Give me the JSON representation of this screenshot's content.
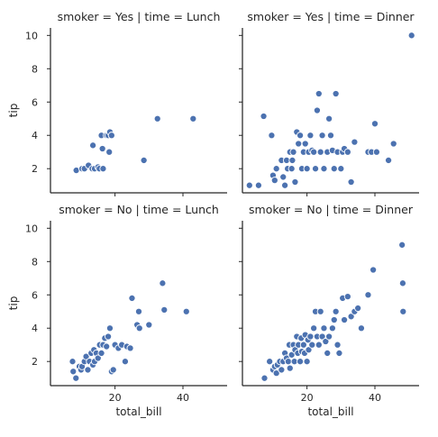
{
  "chart_data": {
    "type": "scatter",
    "facet_row_variable": "smoker",
    "facet_col_variable": "time",
    "xlabel": "total_bill",
    "ylabel": "tip",
    "xlim": [
      1,
      53
    ],
    "ylim": [
      0.55,
      10.45
    ],
    "x_ticks": [
      20,
      40
    ],
    "y_ticks": [
      2,
      4,
      6,
      8,
      10
    ],
    "point_color": "#4c72b0",
    "grid": false,
    "panels": [
      {
        "title": "smoker = Yes | time = Lunch",
        "points": [
          [
            8.6,
            1.9
          ],
          [
            10.3,
            2.0
          ],
          [
            11.0,
            2.0
          ],
          [
            12.2,
            2.2
          ],
          [
            13.3,
            2.0
          ],
          [
            13.5,
            3.4
          ],
          [
            14.0,
            2.0
          ],
          [
            15.0,
            2.1
          ],
          [
            15.4,
            2.0
          ],
          [
            16.0,
            4.0
          ],
          [
            16.3,
            3.2
          ],
          [
            16.5,
            2.0
          ],
          [
            17.5,
            4.0
          ],
          [
            18.0,
            4.0
          ],
          [
            18.3,
            3.0
          ],
          [
            18.5,
            4.2
          ],
          [
            19.0,
            4.0
          ],
          [
            28.5,
            2.5
          ],
          [
            32.5,
            5.0
          ],
          [
            43.0,
            5.0
          ]
        ]
      },
      {
        "title": "smoker = Yes | time = Dinner",
        "points": [
          [
            3.07,
            1.0
          ],
          [
            5.75,
            1.0
          ],
          [
            7.25,
            5.15
          ],
          [
            9.6,
            4.0
          ],
          [
            10.0,
            1.6
          ],
          [
            10.5,
            1.3
          ],
          [
            11.0,
            2.0
          ],
          [
            12.5,
            2.5
          ],
          [
            13.0,
            1.5
          ],
          [
            13.5,
            1.0
          ],
          [
            14.0,
            2.5
          ],
          [
            14.3,
            2.0
          ],
          [
            15.0,
            3.0
          ],
          [
            15.5,
            2.0
          ],
          [
            15.7,
            2.5
          ],
          [
            16.0,
            3.0
          ],
          [
            16.5,
            1.2
          ],
          [
            17.0,
            4.2
          ],
          [
            17.5,
            3.5
          ],
          [
            18.0,
            4.0
          ],
          [
            18.5,
            2.0
          ],
          [
            19.0,
            3.0
          ],
          [
            19.5,
            3.5
          ],
          [
            20.0,
            2.0
          ],
          [
            20.5,
            3.0
          ],
          [
            21.0,
            4.0
          ],
          [
            21.5,
            3.1
          ],
          [
            22.0,
            3.0
          ],
          [
            22.5,
            2.0
          ],
          [
            23.0,
            5.5
          ],
          [
            23.5,
            6.5
          ],
          [
            24.0,
            3.0
          ],
          [
            24.5,
            4.0
          ],
          [
            25.0,
            2.0
          ],
          [
            26.0,
            3.0
          ],
          [
            26.5,
            5.0
          ],
          [
            27.0,
            4.0
          ],
          [
            27.5,
            3.1
          ],
          [
            28.0,
            2.0
          ],
          [
            28.5,
            6.5
          ],
          [
            29.0,
            3.0
          ],
          [
            30.0,
            2.0
          ],
          [
            30.5,
            3.0
          ],
          [
            31.0,
            3.2
          ],
          [
            32.0,
            3.0
          ],
          [
            33.0,
            1.2
          ],
          [
            34.0,
            3.6
          ],
          [
            38.0,
            3.0
          ],
          [
            39.0,
            3.0
          ],
          [
            40.0,
            4.7
          ],
          [
            40.5,
            3.0
          ],
          [
            44.0,
            2.5
          ],
          [
            45.5,
            3.5
          ],
          [
            50.8,
            10.0
          ]
        ]
      },
      {
        "title": "smoker = No | time = Lunch",
        "points": [
          [
            7.5,
            2.0
          ],
          [
            7.7,
            1.4
          ],
          [
            8.5,
            1.0
          ],
          [
            9.5,
            1.7
          ],
          [
            10.0,
            1.5
          ],
          [
            10.3,
            1.7
          ],
          [
            11.0,
            2.0
          ],
          [
            11.5,
            2.3
          ],
          [
            12.0,
            1.5
          ],
          [
            12.5,
            2.0
          ],
          [
            13.0,
            2.5
          ],
          [
            13.5,
            1.8
          ],
          [
            13.8,
            2.7
          ],
          [
            14.0,
            2.0
          ],
          [
            14.5,
            2.5
          ],
          [
            15.0,
            2.2
          ],
          [
            15.5,
            3.0
          ],
          [
            16.0,
            2.5
          ],
          [
            16.5,
            3.0
          ],
          [
            17.0,
            3.4
          ],
          [
            17.5,
            2.9
          ],
          [
            18.0,
            3.5
          ],
          [
            18.5,
            4.0
          ],
          [
            19.0,
            1.4
          ],
          [
            19.5,
            1.5
          ],
          [
            20.0,
            3.0
          ],
          [
            21.0,
            2.8
          ],
          [
            22.0,
            3.0
          ],
          [
            23.0,
            2.0
          ],
          [
            23.5,
            2.9
          ],
          [
            24.5,
            2.8
          ],
          [
            25.0,
            5.8
          ],
          [
            26.5,
            4.2
          ],
          [
            27.0,
            5.0
          ],
          [
            27.2,
            4.0
          ],
          [
            30.0,
            4.2
          ],
          [
            34.0,
            6.7
          ],
          [
            34.5,
            5.1
          ],
          [
            41.0,
            5.0
          ]
        ]
      },
      {
        "title": "smoker = No | time = Dinner",
        "points": [
          [
            7.5,
            1.0
          ],
          [
            9.0,
            2.0
          ],
          [
            10.0,
            1.5
          ],
          [
            10.5,
            1.7
          ],
          [
            11.0,
            1.3
          ],
          [
            11.3,
            1.8
          ],
          [
            12.0,
            2.0
          ],
          [
            12.5,
            1.5
          ],
          [
            13.0,
            2.0
          ],
          [
            13.5,
            2.5
          ],
          [
            14.0,
            2.2
          ],
          [
            14.5,
            2.0
          ],
          [
            14.8,
            3.0
          ],
          [
            15.0,
            1.6
          ],
          [
            15.5,
            2.4
          ],
          [
            16.0,
            3.0
          ],
          [
            16.3,
            2.0
          ],
          [
            16.5,
            2.7
          ],
          [
            17.0,
            3.5
          ],
          [
            17.3,
            2.5
          ],
          [
            17.5,
            3.0
          ],
          [
            18.0,
            2.0
          ],
          [
            18.3,
            3.4
          ],
          [
            18.5,
            2.6
          ],
          [
            19.0,
            3.0
          ],
          [
            19.3,
            2.5
          ],
          [
            19.5,
            3.6
          ],
          [
            20.0,
            2.0
          ],
          [
            20.3,
            3.3
          ],
          [
            20.5,
            2.7
          ],
          [
            21.0,
            3.5
          ],
          [
            21.5,
            3.0
          ],
          [
            22.0,
            4.0
          ],
          [
            22.5,
            5.0
          ],
          [
            23.0,
            3.5
          ],
          [
            23.5,
            3.0
          ],
          [
            24.0,
            5.0
          ],
          [
            24.5,
            3.5
          ],
          [
            25.0,
            4.0
          ],
          [
            25.5,
            3.2
          ],
          [
            26.0,
            2.5
          ],
          [
            26.5,
            3.5
          ],
          [
            27.5,
            4.0
          ],
          [
            28.0,
            4.5
          ],
          [
            28.5,
            5.0
          ],
          [
            29.0,
            3.0
          ],
          [
            29.5,
            2.5
          ],
          [
            30.5,
            5.8
          ],
          [
            31.0,
            4.5
          ],
          [
            32.0,
            5.9
          ],
          [
            33.0,
            4.7
          ],
          [
            34.0,
            5.0
          ],
          [
            35.0,
            5.2
          ],
          [
            36.0,
            4.0
          ],
          [
            38.0,
            6.0
          ],
          [
            39.5,
            7.5
          ],
          [
            48.0,
            9.0
          ],
          [
            48.2,
            6.7
          ],
          [
            48.3,
            5.0
          ]
        ]
      }
    ]
  }
}
